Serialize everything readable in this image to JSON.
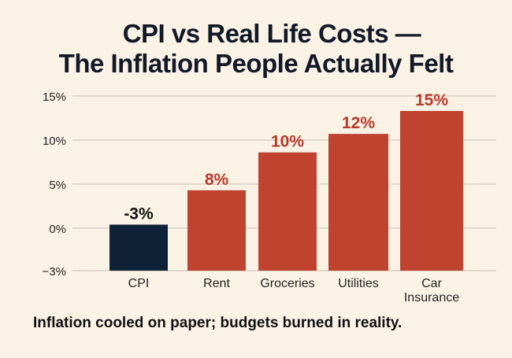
{
  "chart_data": {
    "type": "bar",
    "title": "CPI vs Real Life Costs —",
    "subtitle": "The Inflation People Actually Felt",
    "categories": [
      "CPI",
      "Rent",
      "Groceries",
      "Utilities",
      "Car\nInsurance"
    ],
    "values": [
      -3,
      8,
      10,
      12,
      15
    ],
    "data_labels": [
      "-3%",
      "8%",
      "10%",
      "12%",
      "15%"
    ],
    "bar_heights": [
      0.4,
      4.3,
      8.6,
      10.7,
      13.3
    ],
    "colors": [
      "#0f2238",
      "#c0432f",
      "#c0432f",
      "#c0432f",
      "#c0432f"
    ],
    "label_colors": [
      "#111111",
      "#b83a2b",
      "#b83a2b",
      "#b83a2b",
      "#b83a2b"
    ],
    "yticks": [
      15,
      10,
      5,
      0,
      -3
    ],
    "ytick_labels": [
      "15%",
      "10%",
      "5%",
      "0%",
      "−3%"
    ],
    "ylim": [
      -3,
      15
    ],
    "grid": true,
    "xlabel": "",
    "ylabel": "",
    "caption": "Inflation cooled on paper; budgets burned in reality."
  }
}
